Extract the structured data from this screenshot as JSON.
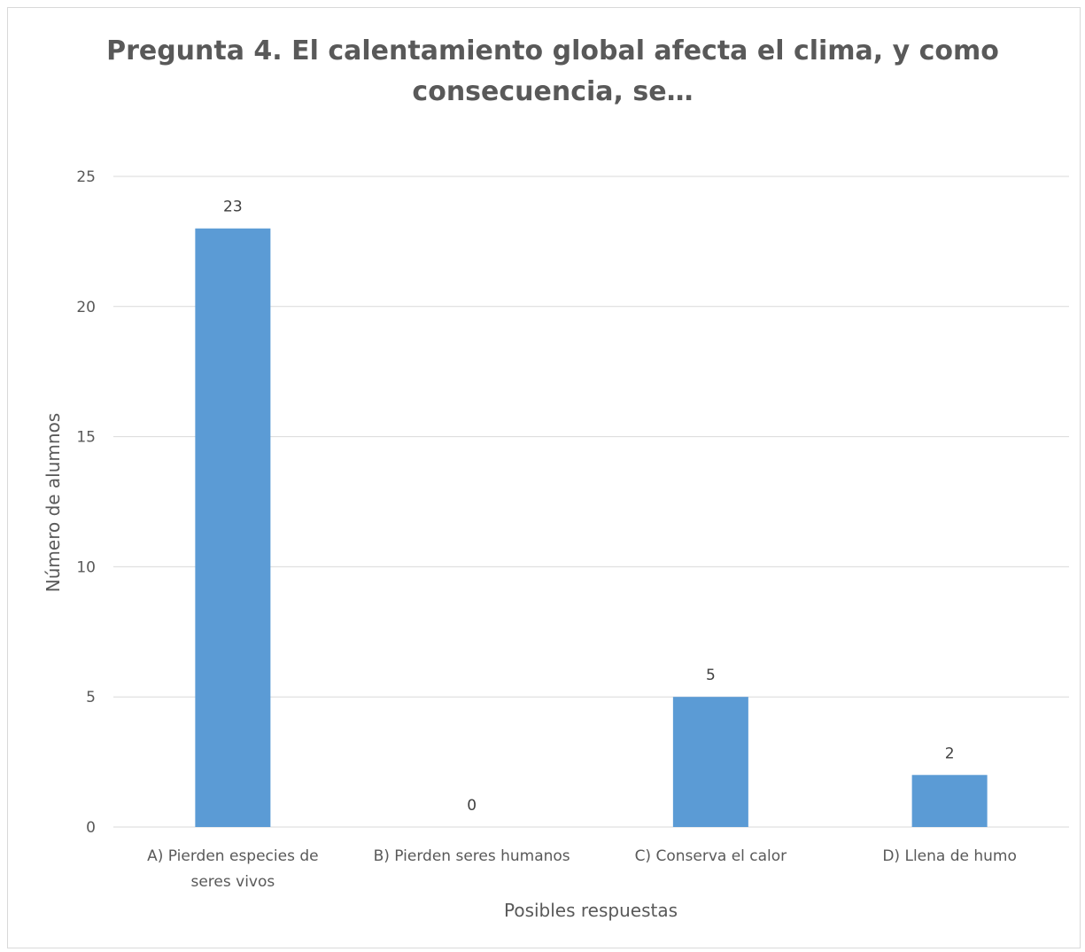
{
  "chart_data": {
    "type": "bar",
    "title_lines": [
      "Pregunta 4. El calentamiento global afecta el clima, y como",
      "consecuencia, se…"
    ],
    "xlabel": "Posibles respuestas",
    "ylabel": "Número de alumnos",
    "categories": [
      [
        "A) Pierden especies de",
        "seres vivos"
      ],
      [
        "B) Pierden seres humanos"
      ],
      [
        "C) Conserva el calor"
      ],
      [
        "D) Llena de humo"
      ]
    ],
    "values": [
      23,
      0,
      5,
      2
    ],
    "data_labels": [
      "23",
      "0",
      "5",
      "2"
    ],
    "ylim": [
      0,
      25
    ],
    "yticks": [
      "0",
      "5",
      "10",
      "15",
      "20",
      "25"
    ],
    "grid": true,
    "legend": "none",
    "colors": {
      "bar": "#5b9bd5",
      "grid": "#d9d9d9",
      "text": "#595959",
      "border": "#d9d9d9"
    }
  }
}
